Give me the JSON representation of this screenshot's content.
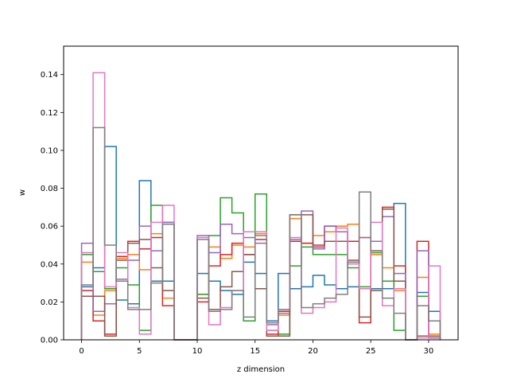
{
  "chart_data": {
    "type": "line",
    "step": "post",
    "xlabel": "z dimension",
    "ylabel": "w",
    "xlim": [
      -1.55,
      32.55
    ],
    "ylim": [
      0,
      0.155
    ],
    "xticks": [
      0,
      5,
      10,
      15,
      20,
      25,
      30
    ],
    "yticks": [
      0.0,
      0.02,
      0.04,
      0.06,
      0.08,
      0.1,
      0.12,
      0.14
    ],
    "ytick_labels": [
      "0.00",
      "0.02",
      "0.04",
      "0.06",
      "0.08",
      "0.10",
      "0.12",
      "0.14"
    ],
    "bin_edges": [
      0,
      1,
      2,
      3,
      4,
      5,
      6,
      7,
      8,
      9,
      10,
      11,
      12,
      13,
      14,
      15,
      16,
      17,
      18,
      19,
      20,
      21,
      22,
      23,
      24,
      25,
      26,
      27,
      28,
      29,
      30,
      31
    ],
    "series": [
      {
        "color": "#1f77b4",
        "values": [
          0.028,
          0.038,
          0.102,
          0.021,
          0.019,
          0.084,
          0.031,
          0.031,
          0,
          0,
          0.035,
          0.031,
          0.026,
          0.024,
          0.041,
          0.035,
          0.01,
          0.035,
          0.027,
          0.028,
          0.034,
          0.029,
          0.027,
          0.028,
          0.027,
          0.027,
          0.027,
          0.072,
          0,
          0.025,
          0.015
        ]
      },
      {
        "color": "#ff7f0e",
        "values": [
          0.041,
          0.013,
          0.026,
          0.043,
          0.045,
          0.037,
          0.056,
          0.022,
          0,
          0,
          0.024,
          0.049,
          0.043,
          0.05,
          0.049,
          0.056,
          0.005,
          0.013,
          0.064,
          0.051,
          0.055,
          0.057,
          0.06,
          0.061,
          0.054,
          0.045,
          0.038,
          0.026,
          0,
          0.033,
          0.003
        ]
      },
      {
        "color": "#2ca02c",
        "values": [
          0.045,
          0.036,
          0.027,
          0.038,
          0.029,
          0.005,
          0.071,
          0.062,
          0,
          0,
          0.024,
          0.055,
          0.075,
          0.067,
          0.01,
          0.077,
          0.002,
          0.003,
          0.039,
          0.049,
          0.045,
          0.045,
          0.045,
          0.038,
          0.028,
          0.046,
          0.031,
          0.005,
          0,
          0.023,
          0.002
        ]
      },
      {
        "color": "#d62728",
        "values": [
          0.026,
          0.01,
          0.003,
          0.044,
          0.052,
          0.048,
          0.054,
          0.018,
          0,
          0,
          0.02,
          0.039,
          0.045,
          0.051,
          0.045,
          0.053,
          0.003,
          0.015,
          0.052,
          0.051,
          0.049,
          0.06,
          0.057,
          0.052,
          0.009,
          0.047,
          0.07,
          0.039,
          0,
          0.052,
          0.001
        ]
      },
      {
        "color": "#9467bd",
        "values": [
          0.051,
          0.015,
          0.019,
          0.032,
          0.042,
          0.06,
          0.047,
          0.062,
          0,
          0,
          0.055,
          0.046,
          0.061,
          0.056,
          0.054,
          0.051,
          0.008,
          0.014,
          0.053,
          0.068,
          0.048,
          0.06,
          0.057,
          0.041,
          0.054,
          0.052,
          0.065,
          0.035,
          0,
          0.047,
          0.001
        ]
      },
      {
        "color": "#8c564b",
        "values": [
          0.023,
          0.023,
          0.002,
          0.042,
          0.051,
          0.053,
          0.038,
          0.026,
          0,
          0,
          0.022,
          0.016,
          0.028,
          0.036,
          0.045,
          0.027,
          0.002,
          0.002,
          0.066,
          0.066,
          0.05,
          0.052,
          0.052,
          0.042,
          0.012,
          0.026,
          0.069,
          0.031,
          0,
          0.002,
          0.002
        ]
      },
      {
        "color": "#e377c2",
        "values": [
          0.046,
          0.141,
          0.028,
          0.046,
          0.017,
          0.003,
          0.062,
          0.071,
          0,
          0,
          0.054,
          0.008,
          0.017,
          0.026,
          0.057,
          0.057,
          0.005,
          0.016,
          0.054,
          0.014,
          0.017,
          0.02,
          0.059,
          0.04,
          0.027,
          0.062,
          0.018,
          0.027,
          0,
          0.001,
          0.039
        ]
      },
      {
        "color": "#7f7f7f",
        "values": [
          0.029,
          0.112,
          0.05,
          0.031,
          0.016,
          0.016,
          0.03,
          0.061,
          0,
          0,
          0.053,
          0.015,
          0.016,
          0.026,
          0.012,
          0.055,
          0.009,
          0.016,
          0.066,
          0.017,
          0.019,
          0.022,
          0.024,
          0.041,
          0.078,
          0.047,
          0.022,
          0.014,
          0,
          0.018,
          0.01
        ]
      }
    ]
  }
}
